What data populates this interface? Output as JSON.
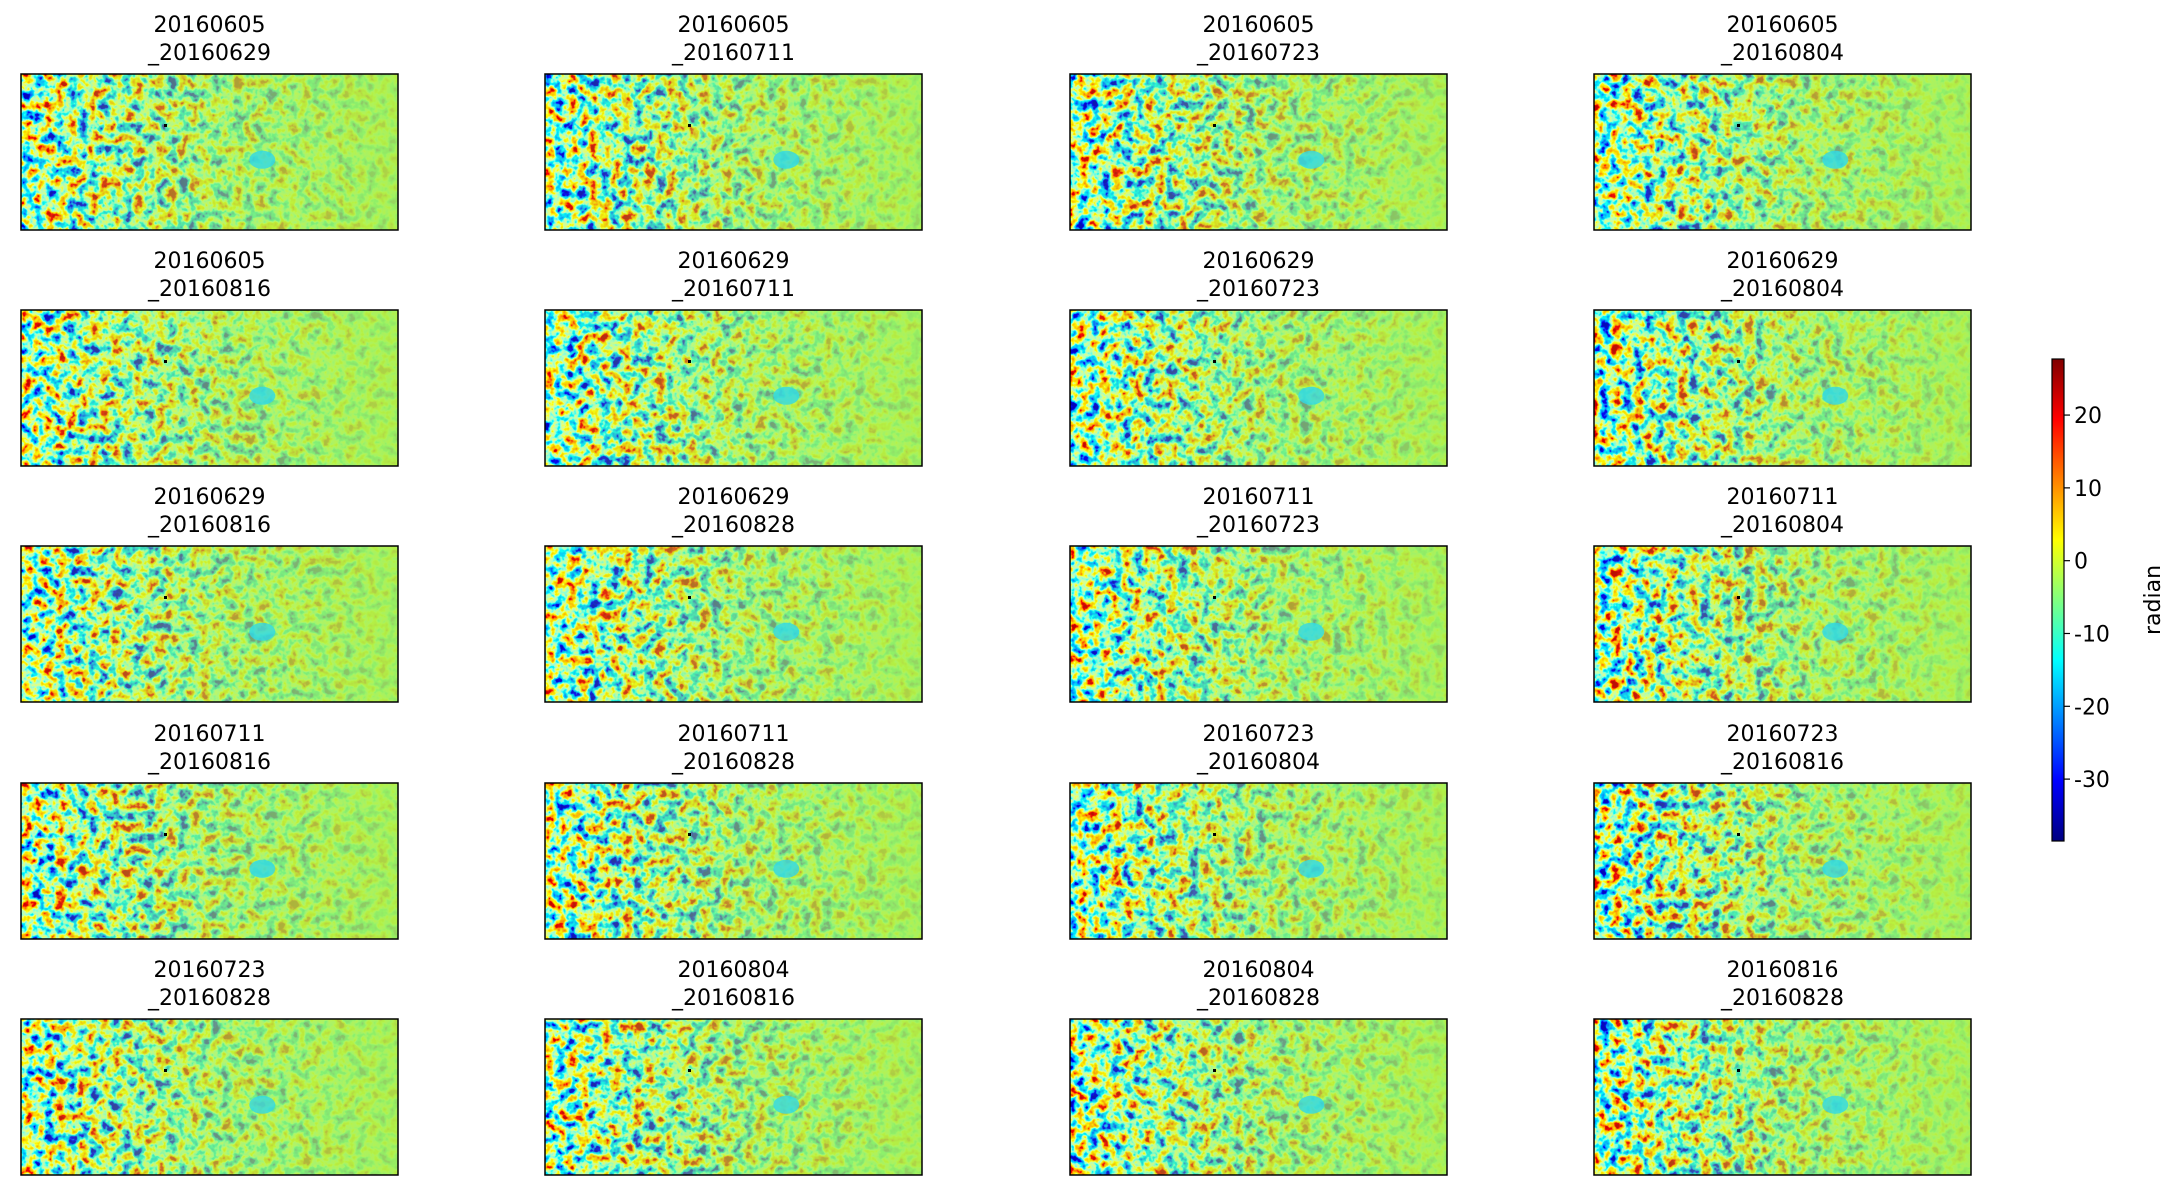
{
  "chart_data": {
    "type": "image-grid",
    "panels": [
      [
        "20160605",
        "_20160629"
      ],
      [
        "20160605",
        "_20160711"
      ],
      [
        "20160605",
        "_20160723"
      ],
      [
        "20160605",
        "_20160804"
      ],
      [
        "20160605",
        "_20160816"
      ],
      [
        "20160629",
        "_20160711"
      ],
      [
        "20160629",
        "_20160723"
      ],
      [
        "20160629",
        "_20160804"
      ],
      [
        "20160629",
        "_20160816"
      ],
      [
        "20160629",
        "_20160828"
      ],
      [
        "20160711",
        "_20160723"
      ],
      [
        "20160711",
        "_20160804"
      ],
      [
        "20160711",
        "_20160816"
      ],
      [
        "20160711",
        "_20160828"
      ],
      [
        "20160723",
        "_20160804"
      ],
      [
        "20160723",
        "_20160816"
      ],
      [
        "20160723",
        "_20160828"
      ],
      [
        "20160804",
        "_20160816"
      ],
      [
        "20160804",
        "_20160828"
      ],
      [
        "20160816",
        "_20160828"
      ]
    ],
    "colormap": "jet",
    "colorbar_label": "radian",
    "clim": [
      -38.5,
      27.7
    ],
    "cticks": [
      20,
      10,
      0,
      -10,
      -20,
      -30
    ]
  }
}
